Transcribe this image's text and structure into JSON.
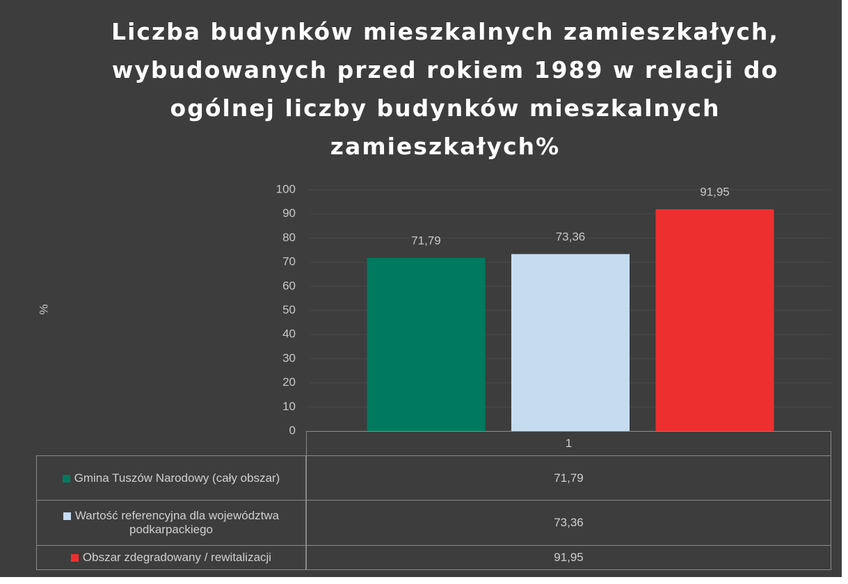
{
  "chart_data": {
    "type": "bar",
    "title": "Liczba budynków mieszkalnych zamieszkałych, wybudowanych przed rokiem 1989 w relacji do ogólnej liczby budynków mieszkalnych zamieszkałych%",
    "y_label": "%",
    "categories": [
      "1"
    ],
    "series": [
      {
        "name": "Gmina Tuszów Narodowy (cały obszar)",
        "color": "#007a5e",
        "values": [
          71.79
        ],
        "value_labels": [
          "71,79"
        ]
      },
      {
        "name": "Wartość referencyjna dla województwa podkarpackiego",
        "color": "#c5dcf0",
        "values": [
          73.36
        ],
        "value_labels": [
          "73,36"
        ]
      },
      {
        "name": "Obszar zdegradowany / rewitalizacji",
        "color": "#ee2f2f",
        "values": [
          91.95
        ],
        "value_labels": [
          "91,95"
        ]
      }
    ],
    "ylim": [
      0,
      100
    ],
    "yticks": [
      0,
      10,
      20,
      30,
      40,
      50,
      60,
      70,
      80,
      90,
      100
    ],
    "grid": true
  }
}
